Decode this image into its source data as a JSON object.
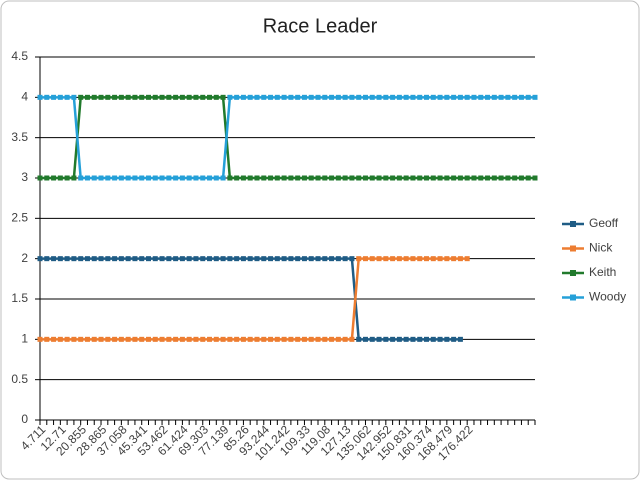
{
  "chart_data": {
    "type": "line",
    "title": "Race Leader",
    "categories": [
      "4.711",
      null,
      null,
      "12.71",
      null,
      null,
      "20.855",
      null,
      null,
      "28.865",
      null,
      null,
      "37.058",
      null,
      null,
      "45.341",
      null,
      null,
      "53.462",
      null,
      null,
      "61.424",
      null,
      null,
      "69.303",
      null,
      null,
      "77.139",
      null,
      null,
      "85.26",
      null,
      null,
      "93.244",
      null,
      null,
      "101.242",
      null,
      null,
      "109.33",
      null,
      null,
      "119.08",
      null,
      null,
      "127.13",
      null,
      null,
      "135.062",
      null,
      null,
      "142.952",
      null,
      null,
      "150.831",
      null,
      null,
      "160.374",
      null,
      null,
      "168.479",
      null,
      null,
      "176.422",
      null,
      null,
      null,
      null,
      null,
      null,
      null,
      null,
      null,
      null
    ],
    "series": [
      {
        "name": "Geoff",
        "color": "#1f5c85",
        "values": [
          2,
          2,
          2,
          2,
          2,
          2,
          2,
          2,
          2,
          2,
          2,
          2,
          2,
          2,
          2,
          2,
          2,
          2,
          2,
          2,
          2,
          2,
          2,
          2,
          2,
          2,
          2,
          2,
          2,
          2,
          2,
          2,
          2,
          2,
          2,
          2,
          2,
          2,
          2,
          2,
          2,
          2,
          2,
          2,
          2,
          2,
          2,
          1,
          1,
          1,
          1,
          1,
          1,
          1,
          1,
          1,
          1,
          1,
          1,
          1,
          1,
          1,
          1,
          null,
          null,
          null,
          null,
          null,
          null,
          null,
          null,
          null,
          null,
          null
        ]
      },
      {
        "name": "Nick",
        "color": "#ed7d31",
        "values": [
          1,
          1,
          1,
          1,
          1,
          1,
          1,
          1,
          1,
          1,
          1,
          1,
          1,
          1,
          1,
          1,
          1,
          1,
          1,
          1,
          1,
          1,
          1,
          1,
          1,
          1,
          1,
          1,
          1,
          1,
          1,
          1,
          1,
          1,
          1,
          1,
          1,
          1,
          1,
          1,
          1,
          1,
          1,
          1,
          1,
          1,
          1,
          2,
          2,
          2,
          2,
          2,
          2,
          2,
          2,
          2,
          2,
          2,
          2,
          2,
          2,
          2,
          2,
          2,
          null,
          null,
          null,
          null,
          null,
          null,
          null,
          null,
          null,
          null
        ]
      },
      {
        "name": "Keith",
        "color": "#217a2c",
        "values": [
          3,
          3,
          3,
          3,
          3,
          3,
          4,
          4,
          4,
          4,
          4,
          4,
          4,
          4,
          4,
          4,
          4,
          4,
          4,
          4,
          4,
          4,
          4,
          4,
          4,
          4,
          4,
          4,
          3,
          3,
          3,
          3,
          3,
          3,
          3,
          3,
          3,
          3,
          3,
          3,
          3,
          3,
          3,
          3,
          3,
          3,
          3,
          3,
          3,
          3,
          3,
          3,
          3,
          3,
          3,
          3,
          3,
          3,
          3,
          3,
          3,
          3,
          3,
          3,
          3,
          3,
          3,
          3,
          3,
          3,
          3,
          3,
          3,
          3
        ]
      },
      {
        "name": "Woody",
        "color": "#25a0d8",
        "values": [
          4,
          4,
          4,
          4,
          4,
          4,
          3,
          3,
          3,
          3,
          3,
          3,
          3,
          3,
          3,
          3,
          3,
          3,
          3,
          3,
          3,
          3,
          3,
          3,
          3,
          3,
          3,
          3,
          4,
          4,
          4,
          4,
          4,
          4,
          4,
          4,
          4,
          4,
          4,
          4,
          4,
          4,
          4,
          4,
          4,
          4,
          4,
          4,
          4,
          4,
          4,
          4,
          4,
          4,
          4,
          4,
          4,
          4,
          4,
          4,
          4,
          4,
          4,
          4,
          4,
          4,
          4,
          4,
          4,
          4,
          4,
          4,
          4,
          4
        ]
      }
    ],
    "ylim": [
      0,
      4.5
    ],
    "yticks": [
      0,
      0.5,
      1,
      1.5,
      2,
      2.5,
      3,
      3.5,
      4,
      4.5
    ],
    "grid": true,
    "legend": "right"
  }
}
